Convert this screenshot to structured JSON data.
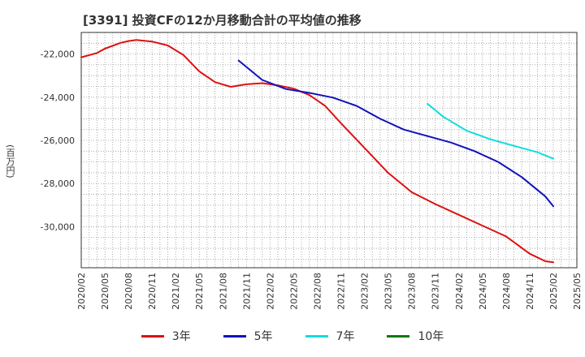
{
  "chart_data": {
    "type": "line",
    "title": "[3391]  投資CFの12か月移動合計の平均値の推移",
    "ylabel": "(百万円)",
    "xlabel": "",
    "ylim": [
      -31900,
      -21000
    ],
    "yticks": [
      -22000,
      -24000,
      -26000,
      -28000,
      -30000
    ],
    "ytick_labels": [
      "-22,000",
      "-24,000",
      "-26,000",
      "-28,000",
      "-30,000"
    ],
    "xticks": [
      "2020/02",
      "2020/05",
      "2020/08",
      "2020/11",
      "2021/02",
      "2021/05",
      "2021/08",
      "2021/11",
      "2022/02",
      "2022/05",
      "2022/08",
      "2022/11",
      "2023/02",
      "2023/05",
      "2023/08",
      "2023/11",
      "2024/02",
      "2024/05",
      "2024/08",
      "2024/11",
      "2025/02",
      "2025/05"
    ],
    "x_range": [
      "2020/02",
      "2025/05"
    ],
    "grid": true,
    "legend_position": "bottom",
    "series": [
      {
        "name": "3年",
        "color": "#dd1111",
        "points": [
          [
            "2020/02",
            -22150
          ],
          [
            "2020/04",
            -21950
          ],
          [
            "2020/05",
            -21750
          ],
          [
            "2020/07",
            -21480
          ],
          [
            "2020/08",
            -21400
          ],
          [
            "2020/09",
            -21350
          ],
          [
            "2020/11",
            -21420
          ],
          [
            "2021/01",
            -21600
          ],
          [
            "2021/03",
            -22050
          ],
          [
            "2021/05",
            -22800
          ],
          [
            "2021/07",
            -23300
          ],
          [
            "2021/09",
            -23520
          ],
          [
            "2021/11",
            -23400
          ],
          [
            "2022/01",
            -23350
          ],
          [
            "2022/03",
            -23450
          ],
          [
            "2022/05",
            -23600
          ],
          [
            "2022/07",
            -23900
          ],
          [
            "2022/09",
            -24400
          ],
          [
            "2022/11",
            -25200
          ],
          [
            "2023/02",
            -26350
          ],
          [
            "2023/05",
            -27500
          ],
          [
            "2023/08",
            -28400
          ],
          [
            "2023/11",
            -28950
          ],
          [
            "2024/02",
            -29450
          ],
          [
            "2024/05",
            -29950
          ],
          [
            "2024/08",
            -30450
          ],
          [
            "2024/11",
            -31250
          ],
          [
            "2025/01",
            -31600
          ],
          [
            "2025/02",
            -31650
          ]
        ]
      },
      {
        "name": "5年",
        "color": "#1111bb",
        "points": [
          [
            "2021/10",
            -22300
          ],
          [
            "2022/01",
            -23200
          ],
          [
            "2022/04",
            -23620
          ],
          [
            "2022/07",
            -23800
          ],
          [
            "2022/10",
            -24020
          ],
          [
            "2023/01",
            -24400
          ],
          [
            "2023/04",
            -25000
          ],
          [
            "2023/07",
            -25500
          ],
          [
            "2023/10",
            -25800
          ],
          [
            "2024/01",
            -26100
          ],
          [
            "2024/04",
            -26500
          ],
          [
            "2024/07",
            -27000
          ],
          [
            "2024/10",
            -27700
          ],
          [
            "2025/01",
            -28600
          ],
          [
            "2025/02",
            -29050
          ]
        ]
      },
      {
        "name": "7年",
        "color": "#11dddd",
        "points": [
          [
            "2023/10",
            -24300
          ],
          [
            "2023/12",
            -24900
          ],
          [
            "2024/03",
            -25550
          ],
          [
            "2024/06",
            -25950
          ],
          [
            "2024/09",
            -26250
          ],
          [
            "2024/12",
            -26550
          ],
          [
            "2025/02",
            -26850
          ]
        ]
      },
      {
        "name": "10年",
        "color": "#117711",
        "points": []
      }
    ]
  }
}
